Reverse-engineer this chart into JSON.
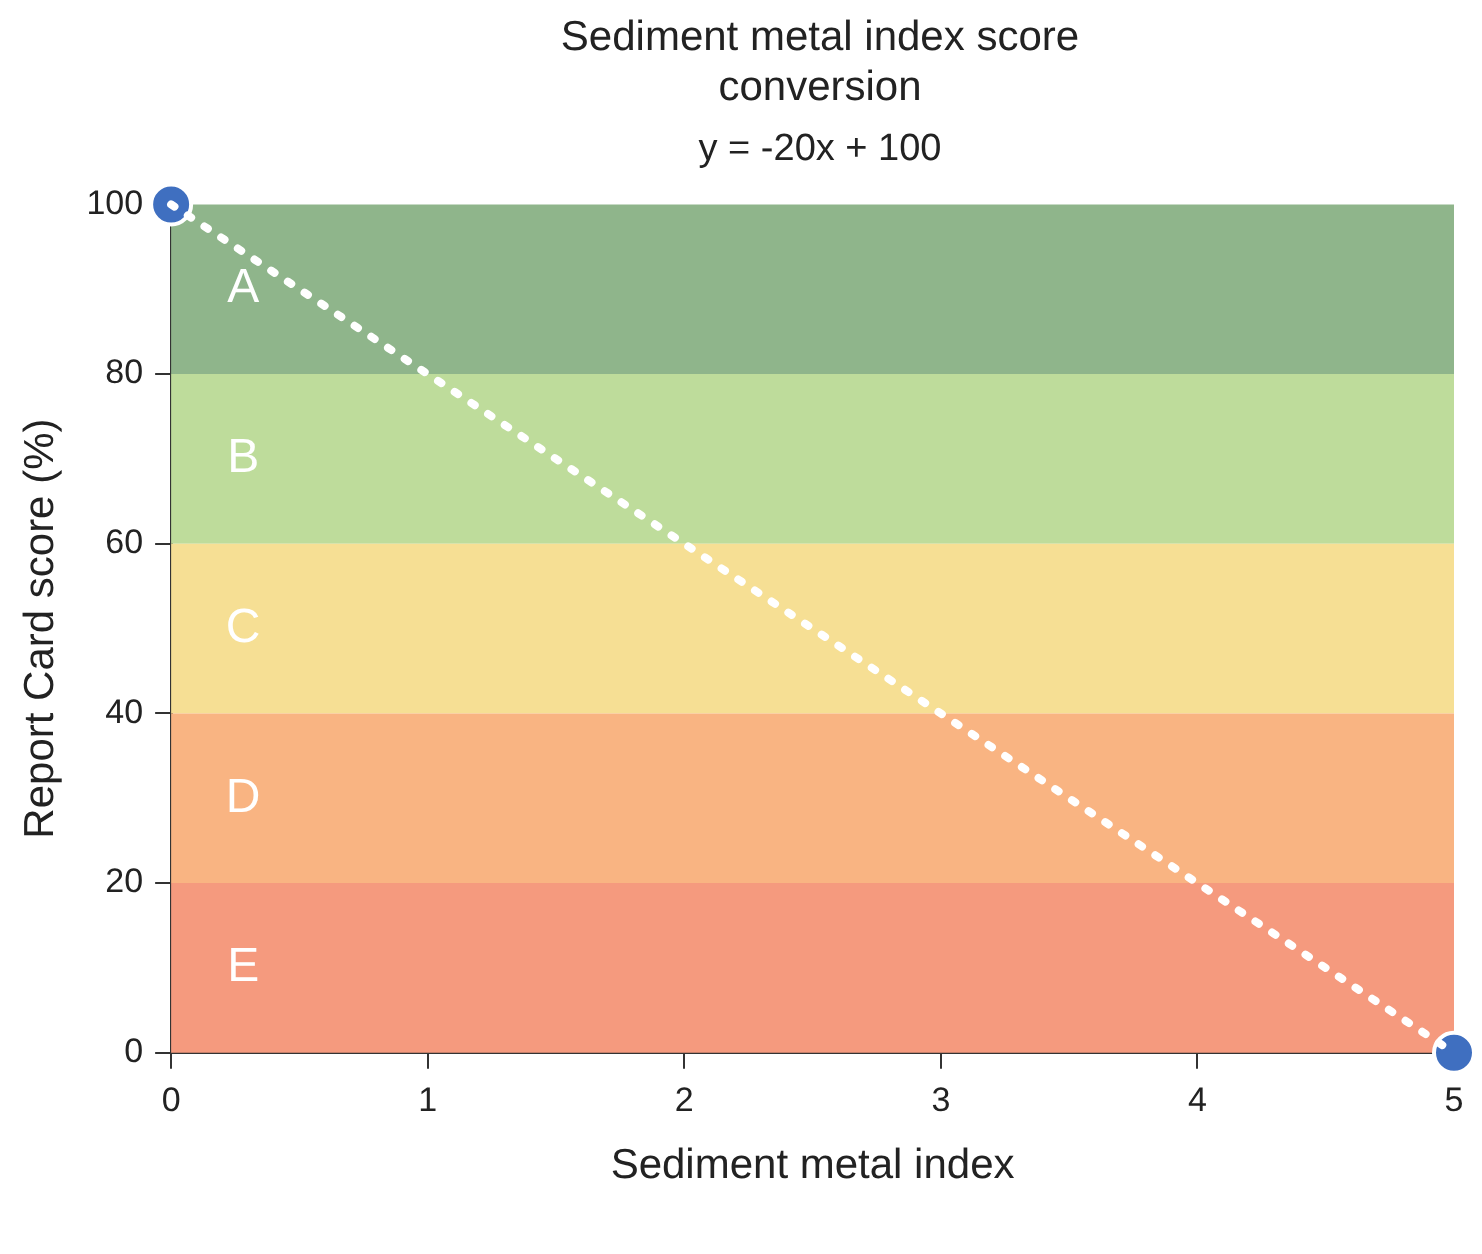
{
  "chart_data": {
    "type": "line",
    "title": "Sediment metal index score conversion",
    "subtitle": "y = -20x + 100",
    "xlabel": "Sediment metal index",
    "ylabel": "Report Card score (%)",
    "x": [
      0,
      5
    ],
    "xlim": [
      0,
      5
    ],
    "xticks": [
      0,
      1,
      2,
      3,
      4,
      5
    ],
    "ylim": [
      0,
      100
    ],
    "yticks": [
      0,
      20,
      40,
      60,
      80,
      100
    ],
    "grid": false,
    "legend": false,
    "bands": [
      {
        "axis": "y",
        "from": 80,
        "to": 100,
        "label": "A",
        "color": "#8fb58b"
      },
      {
        "axis": "y",
        "from": 60,
        "to": 80,
        "label": "B",
        "color": "#bedc9b"
      },
      {
        "axis": "y",
        "from": 40,
        "to": 60,
        "label": "C",
        "color": "#f6df94"
      },
      {
        "axis": "y",
        "from": 20,
        "to": 40,
        "label": "D",
        "color": "#f9b482"
      },
      {
        "axis": "y",
        "from": 0,
        "to": 20,
        "label": "E",
        "color": "#f59a7e"
      }
    ],
    "series": [
      {
        "type": "line",
        "color": "#ffffff",
        "line_style": "dotted",
        "marker": "none",
        "values": [
          100,
          0
        ]
      },
      {
        "type": "scatter",
        "color": "#3f6fc0",
        "marker": "circle",
        "values": [
          100,
          0
        ]
      }
    ]
  }
}
